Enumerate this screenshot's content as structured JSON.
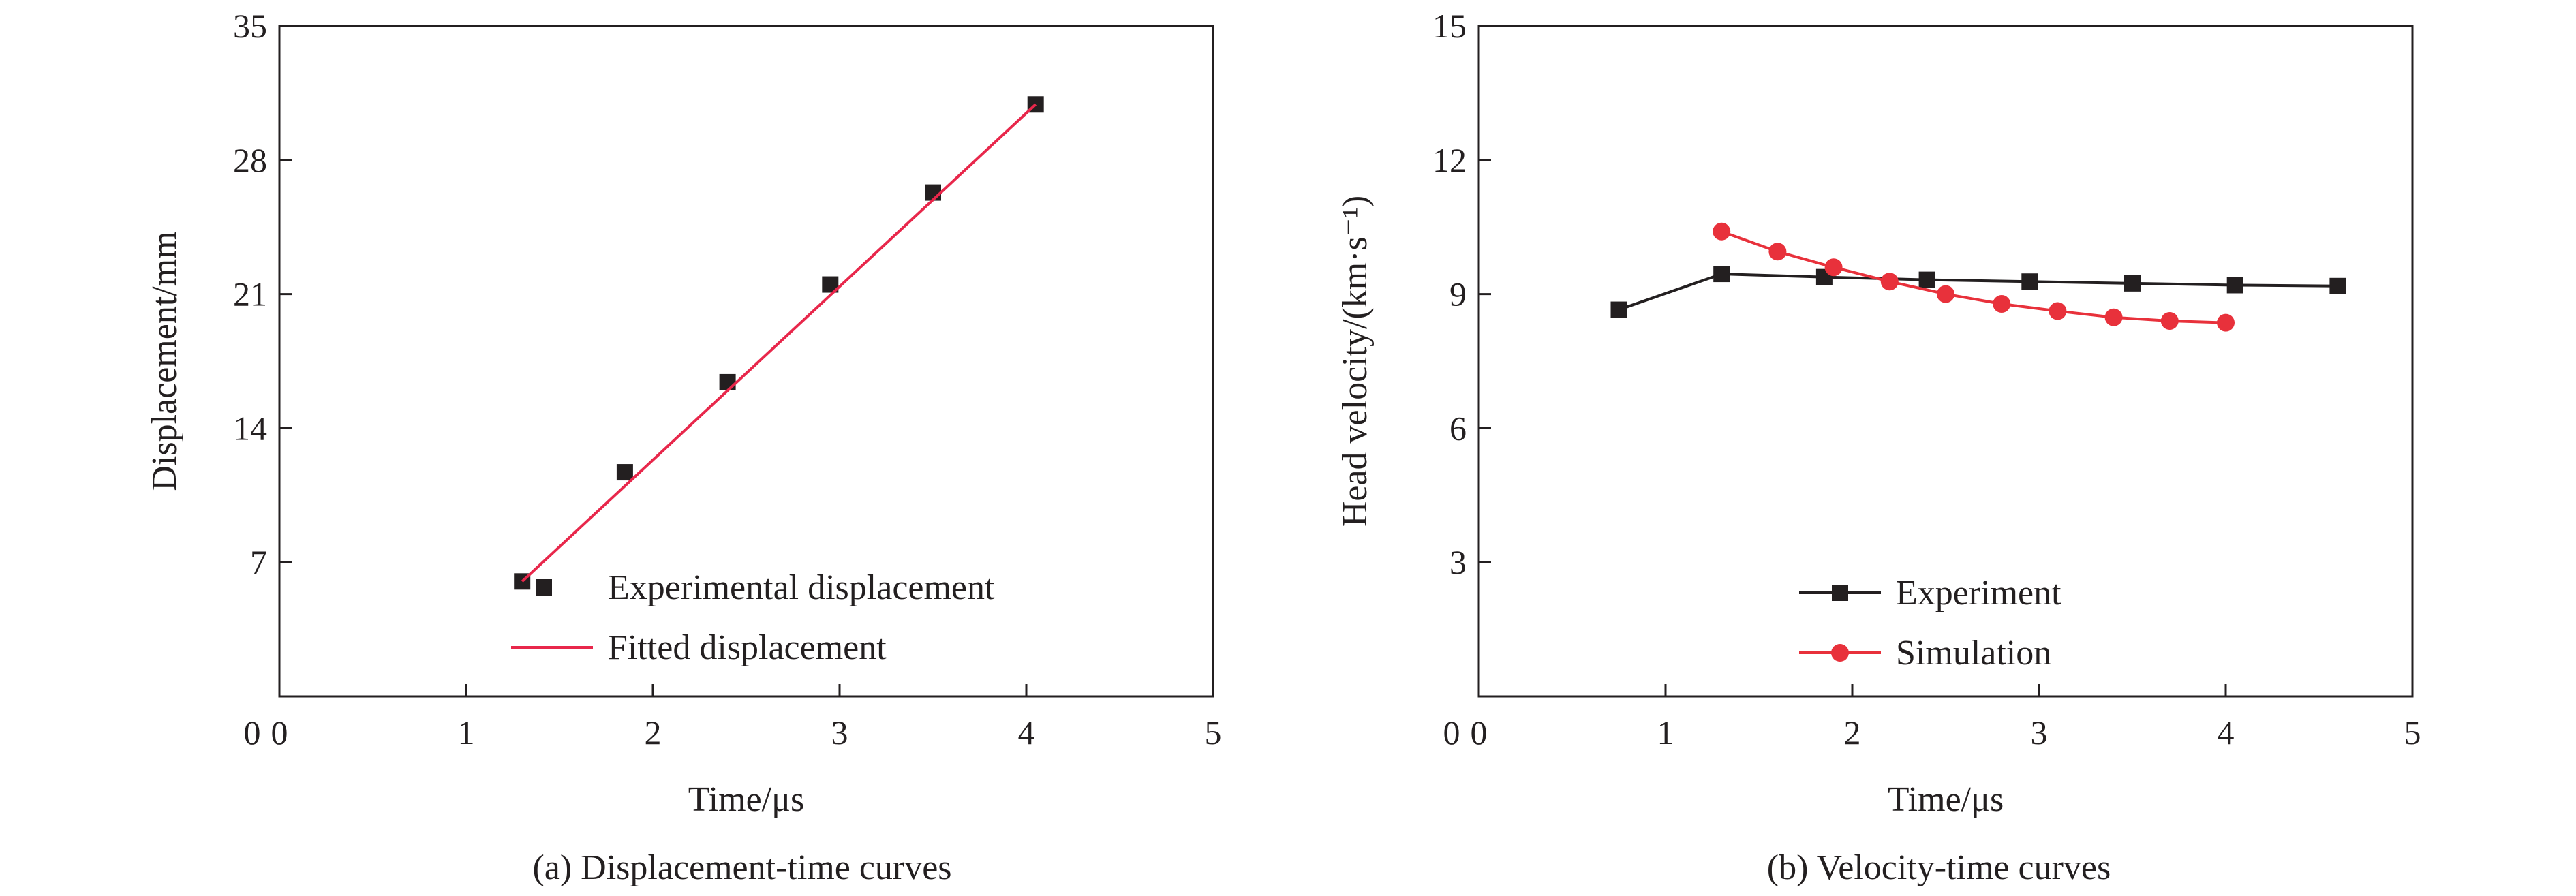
{
  "chart_data": [
    {
      "type": "scatter",
      "caption": "(a) Displacement-time curves",
      "xlabel": "Time/μs",
      "ylabel": "Displacement/mm",
      "xlim": [
        0,
        5
      ],
      "ylim": [
        0,
        35
      ],
      "xticks": [
        0,
        1,
        2,
        3,
        4,
        5
      ],
      "yticks": [
        7,
        14,
        21,
        28,
        35
      ],
      "grid": false,
      "legend_position": "bottom-right",
      "series": [
        {
          "name": "Experimental displacement",
          "kind": "markers",
          "marker": "square",
          "color": "#231f20",
          "x": [
            1.3,
            1.85,
            2.4,
            2.95,
            3.5,
            4.05
          ],
          "y": [
            6.0,
            11.7,
            16.4,
            21.5,
            26.3,
            30.9
          ]
        },
        {
          "name": "Fitted displacement",
          "kind": "line",
          "color": "#e8274b",
          "x": [
            1.3,
            4.05
          ],
          "y": [
            6.0,
            30.9
          ]
        }
      ]
    },
    {
      "type": "line",
      "caption": "(b) Velocity-time curves",
      "xlabel": "Time/μs",
      "ylabel": "Head velocity/(km·s⁻¹)",
      "xlim": [
        0,
        5
      ],
      "ylim": [
        0,
        15
      ],
      "xticks": [
        0,
        1,
        2,
        3,
        4,
        5
      ],
      "yticks": [
        3,
        6,
        9,
        12,
        15
      ],
      "grid": false,
      "legend_position": "bottom-right",
      "series": [
        {
          "name": "Experiment",
          "kind": "line-markers",
          "marker": "square",
          "color": "#231f20",
          "x": [
            0.75,
            1.3,
            1.85,
            2.4,
            2.95,
            3.5,
            4.05,
            4.6
          ],
          "y": [
            8.65,
            9.45,
            9.38,
            9.32,
            9.28,
            9.24,
            9.2,
            9.18
          ]
        },
        {
          "name": "Simulation",
          "kind": "line-markers",
          "marker": "circle",
          "color": "#e8313b",
          "x": [
            1.3,
            1.6,
            1.9,
            2.2,
            2.5,
            2.8,
            3.1,
            3.4,
            3.7,
            4.0
          ],
          "y": [
            10.4,
            9.95,
            9.6,
            9.28,
            9.0,
            8.78,
            8.62,
            8.48,
            8.4,
            8.36
          ]
        }
      ]
    }
  ]
}
